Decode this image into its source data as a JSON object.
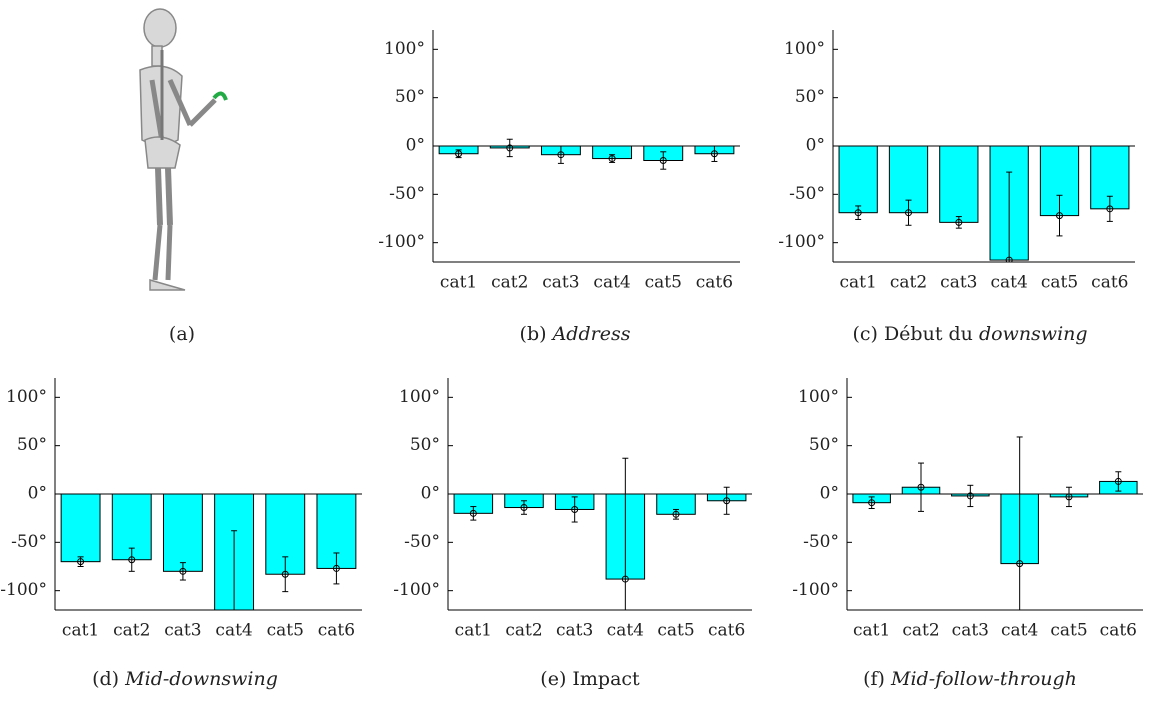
{
  "panel_a_caption": "(a)",
  "chart_data": [
    {
      "type": "bar",
      "caption": {
        "tag": "(b)",
        "italic": "Address"
      },
      "categories": [
        "cat1",
        "cat2",
        "cat3",
        "cat4",
        "cat5",
        "cat6"
      ],
      "values": [
        -8,
        -2,
        -9,
        -13,
        -15,
        -8
      ],
      "errors": [
        4,
        9,
        9,
        4,
        9,
        8
      ],
      "color": "#00ffff",
      "ylim": [
        -120,
        120
      ],
      "yticks": [
        {
          "value": -100,
          "label": "-100°"
        },
        {
          "value": -50,
          "label": "-50°"
        },
        {
          "value": 0,
          "label": "0°"
        },
        {
          "value": 50,
          "label": "50°"
        },
        {
          "value": 100,
          "label": "100°"
        }
      ]
    },
    {
      "type": "bar",
      "caption": {
        "tag": "(c)",
        "plain": "Début du",
        "italic": "downswing"
      },
      "categories": [
        "cat1",
        "cat2",
        "cat3",
        "cat4",
        "cat5",
        "cat6"
      ],
      "values": [
        -69,
        -69,
        -79,
        -118,
        -72,
        -65
      ],
      "errors": [
        7,
        13,
        6,
        91,
        21,
        13
      ],
      "color": "#00ffff",
      "ylim": [
        -120,
        120
      ],
      "yticks": [
        {
          "value": -100,
          "label": "-100°"
        },
        {
          "value": -50,
          "label": "-50°"
        },
        {
          "value": 0,
          "label": "0°"
        },
        {
          "value": 50,
          "label": "50°"
        },
        {
          "value": 100,
          "label": "100°"
        }
      ]
    },
    {
      "type": "bar",
      "caption": {
        "tag": "(d)",
        "italic": "Mid-downswing"
      },
      "categories": [
        "cat1",
        "cat2",
        "cat3",
        "cat4",
        "cat5",
        "cat6"
      ],
      "values": [
        -70,
        -68,
        -80,
        -130,
        -83,
        -77
      ],
      "errors": [
        5,
        12,
        9,
        92,
        18,
        16
      ],
      "color": "#00ffff",
      "ylim": [
        -120,
        120
      ],
      "yticks": [
        {
          "value": -100,
          "label": "-100°"
        },
        {
          "value": -50,
          "label": "-50°"
        },
        {
          "value": 0,
          "label": "0°"
        },
        {
          "value": 50,
          "label": "50°"
        },
        {
          "value": 100,
          "label": "100°"
        }
      ]
    },
    {
      "type": "bar",
      "caption": {
        "tag": "(e)",
        "plain": "Impact"
      },
      "categories": [
        "cat1",
        "cat2",
        "cat3",
        "cat4",
        "cat5",
        "cat6"
      ],
      "values": [
        -20,
        -14,
        -16,
        -88,
        -21,
        -7
      ],
      "errors": [
        7,
        7,
        13,
        125,
        5,
        14
      ],
      "color": "#00ffff",
      "ylim": [
        -120,
        120
      ],
      "yticks": [
        {
          "value": -100,
          "label": "-100°"
        },
        {
          "value": -50,
          "label": "-50°"
        },
        {
          "value": 0,
          "label": "0°"
        },
        {
          "value": 50,
          "label": "50°"
        },
        {
          "value": 100,
          "label": "100°"
        }
      ]
    },
    {
      "type": "bar",
      "caption": {
        "tag": "(f)",
        "italic": "Mid-follow-through"
      },
      "categories": [
        "cat1",
        "cat2",
        "cat3",
        "cat4",
        "cat5",
        "cat6"
      ],
      "values": [
        -9,
        7,
        -2,
        -72,
        -3,
        13
      ],
      "errors": [
        6,
        25,
        11,
        131,
        10,
        10
      ],
      "color": "#00ffff",
      "ylim": [
        -120,
        120
      ],
      "yticks": [
        {
          "value": -100,
          "label": "-100°"
        },
        {
          "value": -50,
          "label": "-50°"
        },
        {
          "value": 0,
          "label": "0°"
        },
        {
          "value": 50,
          "label": "50°"
        },
        {
          "value": 100,
          "label": "100°"
        }
      ]
    }
  ]
}
